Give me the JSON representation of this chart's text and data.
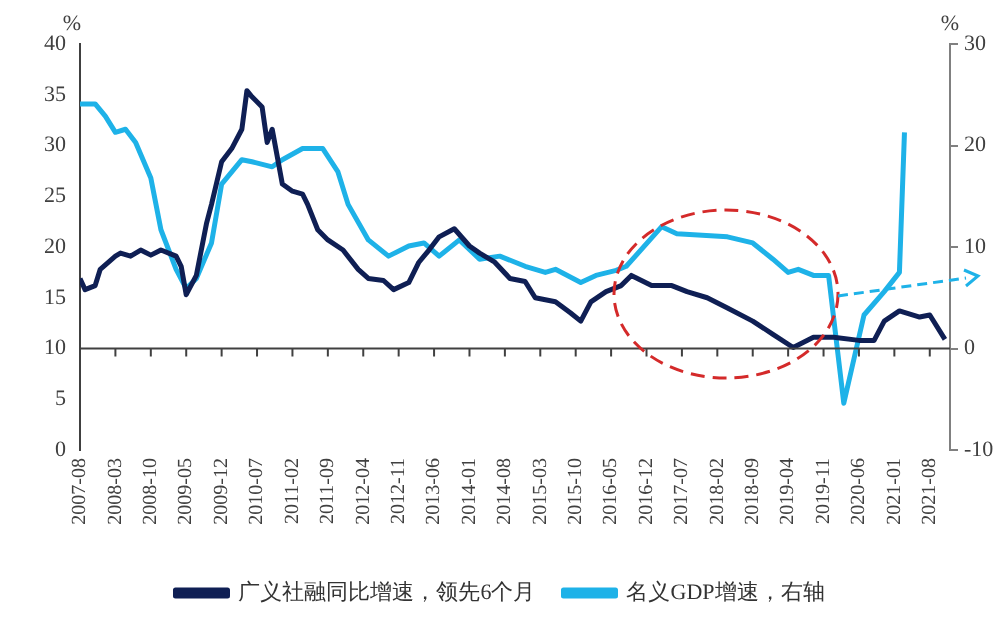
{
  "chart_data": {
    "type": "line",
    "ylabel": "%",
    "y2label": "%",
    "xlim": [
      "2007-08",
      "2021-12"
    ],
    "xticks": [
      "2007-08",
      "2008-03",
      "2008-10",
      "2009-05",
      "2009-12",
      "2010-07",
      "2011-02",
      "2011-09",
      "2012-04",
      "2012-11",
      "2013-06",
      "2014-01",
      "2014-08",
      "2015-03",
      "2015-10",
      "2016-05",
      "2016-12",
      "2017-07",
      "2018-02",
      "2018-09",
      "2019-04",
      "2019-11",
      "2020-06",
      "2021-01",
      "2021-08"
    ],
    "ylim": [
      0,
      40
    ],
    "yticks": [
      0,
      5,
      10,
      15,
      20,
      25,
      30,
      35,
      40
    ],
    "y2lim": [
      -10,
      30
    ],
    "y2ticks": [
      -10,
      0,
      10,
      20,
      30
    ],
    "grid": false,
    "legend": "bottom",
    "marker": "none",
    "line_style": "solid",
    "ref_lines": [
      {
        "axis": "y2",
        "value": 0,
        "color": "#404040"
      }
    ],
    "series": [
      {
        "name": "广义社融同比增速，领先6个月",
        "color": "#0f1f54",
        "x": [
          "2007-08",
          "2007-09",
          "2007-11",
          "2007-12",
          "2008-03",
          "2008-04",
          "2008-06",
          "2008-08",
          "2008-10",
          "2008-12",
          "2009-03",
          "2009-04",
          "2009-05",
          "2009-07",
          "2009-09",
          "2009-10",
          "2009-12",
          "2010-02",
          "2010-04",
          "2010-05",
          "2010-06",
          "2010-08",
          "2010-09",
          "2010-10",
          "2010-12",
          "2011-02",
          "2011-04",
          "2011-05",
          "2011-07",
          "2011-09",
          "2011-12",
          "2012-03",
          "2012-05",
          "2012-08",
          "2012-10",
          "2013-01",
          "2013-03",
          "2013-05",
          "2013-07",
          "2013-10",
          "2014-01",
          "2014-03",
          "2014-06",
          "2014-09",
          "2014-12",
          "2015-02",
          "2015-06",
          "2015-09",
          "2015-11",
          "2016-01",
          "2016-04",
          "2016-07",
          "2016-09",
          "2017-01",
          "2017-05",
          "2017-08",
          "2017-12",
          "2018-04",
          "2018-09",
          "2019-01",
          "2019-05",
          "2019-09",
          "2020-01",
          "2020-06",
          "2020-09",
          "2020-11",
          "2021-02",
          "2021-06",
          "2021-08",
          "2021-11"
        ],
        "values": [
          16.9,
          15.8,
          16.2,
          17.8,
          19.1,
          19.4,
          19.1,
          19.7,
          19.2,
          19.7,
          19.1,
          18.1,
          15.3,
          17.2,
          22.3,
          24.2,
          28.4,
          29.7,
          31.6,
          35.4,
          34.8,
          33.8,
          30.3,
          31.6,
          26.2,
          25.5,
          25.2,
          24.2,
          21.7,
          20.7,
          19.7,
          17.8,
          16.9,
          16.7,
          15.8,
          16.5,
          18.5,
          19.7,
          21.0,
          21.8,
          20.1,
          19.4,
          18.5,
          16.9,
          16.6,
          15.0,
          14.6,
          13.5,
          12.7,
          14.6,
          15.6,
          16.2,
          17.2,
          16.2,
          16.2,
          15.6,
          15.0,
          14.0,
          12.7,
          11.4,
          10.1,
          11.1,
          11.1,
          10.8,
          10.8,
          12.7,
          13.7,
          13.1,
          13.3,
          10.9
        ]
      },
      {
        "name": "名义GDP增速，右轴",
        "color": "#1eb2e8",
        "axis": "y2",
        "x": [
          "2007-08",
          "2007-11",
          "2008-01",
          "2008-03",
          "2008-05",
          "2008-07",
          "2008-10",
          "2008-12",
          "2009-03",
          "2009-05",
          "2009-07",
          "2009-10",
          "2009-12",
          "2010-04",
          "2010-06",
          "2010-10",
          "2010-12",
          "2011-04",
          "2011-08",
          "2011-11",
          "2012-01",
          "2012-05",
          "2012-09",
          "2013-01",
          "2013-04",
          "2013-07",
          "2013-11",
          "2014-03",
          "2014-07",
          "2014-12",
          "2015-04",
          "2015-06",
          "2015-11",
          "2016-02",
          "2016-06",
          "2016-08",
          "2017-03",
          "2017-06",
          "2018-04",
          "2018-09",
          "2019-01",
          "2019-04",
          "2019-06",
          "2019-09",
          "2019-12",
          "2020-03",
          "2020-07",
          "2020-11",
          "2021-02",
          "2021-03"
        ],
        "values": [
          24.1,
          24.1,
          22.9,
          21.3,
          21.6,
          20.3,
          16.8,
          11.7,
          7.8,
          5.9,
          6.9,
          10.4,
          16.2,
          18.6,
          18.4,
          17.9,
          18.6,
          19.7,
          19.7,
          17.4,
          14.2,
          10.7,
          9.1,
          10.1,
          10.4,
          9.1,
          10.7,
          8.8,
          9.1,
          8.1,
          7.5,
          7.8,
          6.5,
          7.2,
          7.7,
          8.1,
          12.0,
          11.3,
          11.0,
          10.4,
          8.8,
          7.5,
          7.8,
          7.2,
          7.2,
          -5.4,
          3.3,
          5.6,
          7.5,
          21.3
        ]
      }
    ]
  }
}
